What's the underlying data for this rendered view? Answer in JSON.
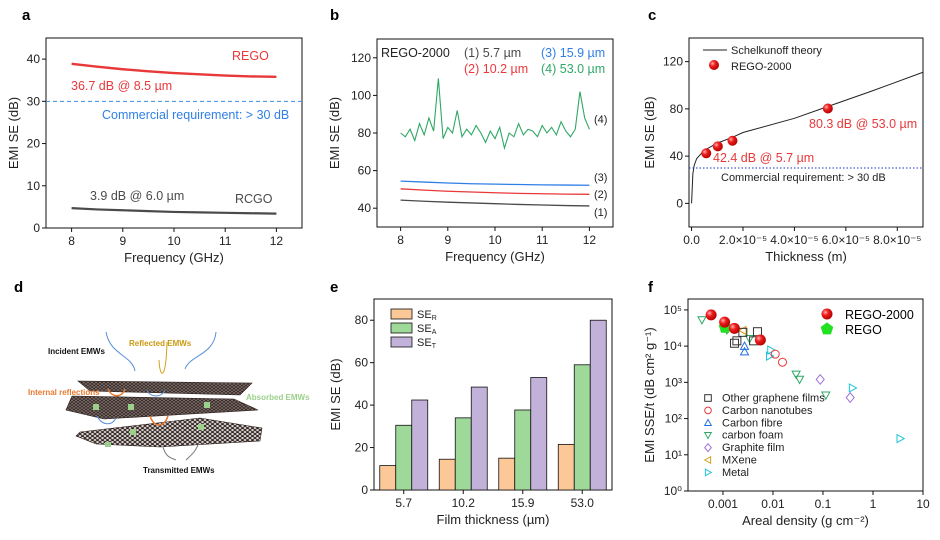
{
  "panel_labels": [
    "a",
    "b",
    "c",
    "d",
    "e",
    "f"
  ],
  "colors": {
    "red": "#e8383a",
    "blue": "#2f7fe6",
    "gray": "#4a4a4a",
    "green": "#2ea866",
    "bar_r": "#fcc898",
    "bar_a": "#9ed99a",
    "bar_t": "#c2b2d9",
    "lime": "#22e022"
  },
  "chart_data": [
    {
      "panel": "a",
      "type": "line",
      "xlabel": "Frequency (GHz)",
      "ylabel": "EMI SE (dB)",
      "xlim": [
        7.5,
        12.5
      ],
      "ylim": [
        0,
        45
      ],
      "xticks": [
        8,
        9,
        10,
        11,
        12
      ],
      "yticks": [
        0,
        10,
        20,
        30,
        40
      ],
      "x": [
        8,
        8.5,
        9,
        9.5,
        10,
        10.5,
        11,
        11.5,
        12
      ],
      "series": [
        {
          "name": "REGO",
          "color": "#e8383a",
          "values": [
            38.9,
            38.2,
            37.6,
            37.1,
            36.7,
            36.4,
            36.1,
            35.9,
            35.8
          ]
        },
        {
          "name": "RCGO",
          "color": "#4a4a4a",
          "values": [
            4.7,
            4.4,
            4.2,
            4.0,
            3.8,
            3.7,
            3.6,
            3.5,
            3.4
          ]
        }
      ],
      "reference_line": {
        "value": 30,
        "style": "dashed",
        "label": "Commercial requirement: > 30 dB"
      },
      "annotations": [
        "36.7 dB @ 8.5 µm",
        "3.9 dB @ 6.0 µm"
      ]
    },
    {
      "panel": "b",
      "type": "line",
      "xlabel": "Frequency (GHz)",
      "ylabel": "EMI SE (dB)",
      "xlim": [
        7.5,
        12.5
      ],
      "ylim": [
        30,
        130
      ],
      "xticks": [
        8,
        9,
        10,
        11,
        12
      ],
      "yticks": [
        40,
        60,
        80,
        100,
        120
      ],
      "title": "REGO-2000",
      "series": [
        {
          "name": "(1) 5.7 µm",
          "tag": "(1)",
          "color": "#4a4a4a",
          "x": [
            8,
            8.5,
            9,
            9.5,
            10,
            10.5,
            11,
            11.5,
            12
          ],
          "values": [
            44.3,
            43.7,
            43.2,
            42.8,
            42.4,
            42.0,
            41.7,
            41.4,
            41.2
          ]
        },
        {
          "name": "(2) 10.2 µm",
          "tag": "(2)",
          "color": "#e8383a",
          "x": [
            8,
            8.5,
            9,
            9.5,
            10,
            10.5,
            11,
            11.5,
            12
          ],
          "values": [
            50.3,
            49.6,
            49.0,
            48.6,
            48.2,
            47.9,
            47.7,
            47.5,
            47.4
          ]
        },
        {
          "name": "(3) 15.9 µm",
          "tag": "(3)",
          "color": "#2f7fe6",
          "x": [
            8,
            8.5,
            9,
            9.5,
            10,
            10.5,
            11,
            11.5,
            12
          ],
          "values": [
            54.4,
            53.9,
            53.4,
            53.0,
            52.8,
            52.6,
            52.4,
            52.3,
            52.2
          ]
        },
        {
          "name": "(4) 53.0 µm",
          "tag": "(4)",
          "color": "#2ea866",
          "x": [
            8,
            8.1,
            8.2,
            8.3,
            8.4,
            8.5,
            8.6,
            8.7,
            8.8,
            8.9,
            9,
            9.1,
            9.2,
            9.3,
            9.4,
            9.5,
            9.6,
            9.7,
            9.8,
            9.9,
            10,
            10.1,
            10.2,
            10.3,
            10.4,
            10.5,
            10.6,
            10.7,
            10.8,
            10.9,
            11,
            11.1,
            11.2,
            11.3,
            11.4,
            11.5,
            11.6,
            11.7,
            11.8,
            11.9,
            12
          ],
          "values": [
            80,
            78,
            82,
            76,
            85,
            79,
            88,
            81,
            109,
            77,
            83,
            80,
            92,
            78,
            82,
            79,
            84,
            80,
            75,
            81,
            77,
            83,
            72,
            80,
            78,
            85,
            79,
            82,
            81,
            78,
            84,
            80,
            83,
            79,
            86,
            81,
            78,
            82,
            102,
            88,
            82
          ]
        }
      ]
    },
    {
      "panel": "c",
      "type": "scatter",
      "xlabel": "Thickness (m)",
      "ylabel": "EMI SE (dB)",
      "xlim": [
        -1e-06,
        9e-05
      ],
      "ylim": [
        -20,
        140
      ],
      "xticks": [
        0,
        2e-05,
        4e-05,
        6e-05,
        8e-05
      ],
      "xtick_labels": [
        "0.0",
        "2.0×10⁻⁵",
        "4.0×10⁻⁵",
        "6.0×10⁻⁵",
        "8.0×10⁻⁵"
      ],
      "yticks": [
        0,
        40,
        80,
        120
      ],
      "legend": "top-left",
      "series": [
        {
          "name": "Schelkunoff theory",
          "kind": "line",
          "color": "#222222",
          "points": [
            [
              0,
              0
            ],
            [
              5e-07,
              25
            ],
            [
              1e-06,
              32
            ],
            [
              2e-06,
              38
            ],
            [
              5e-06,
              45
            ],
            [
              1e-05,
              51
            ],
            [
              1.6e-05,
              56
            ],
            [
              2e-05,
              60
            ],
            [
              4e-05,
              72
            ],
            [
              5.3e-05,
              82
            ],
            [
              7e-05,
              95
            ],
            [
              9e-05,
              111
            ]
          ]
        },
        {
          "name": "REGO-2000",
          "kind": "points",
          "color": "#e8383a",
          "points": [
            [
              5.7e-06,
              42.4
            ],
            [
              1.02e-05,
              48.3
            ],
            [
              1.59e-05,
              53
            ],
            [
              5.3e-05,
              80.3
            ]
          ]
        }
      ],
      "reference_line": {
        "value": 30,
        "style": "dotted",
        "label": "Commercial requirement: > 30 dB"
      },
      "annotations": [
        "80.3 dB @ 53.0 µm",
        "42.4 dB @ 5.7 µm"
      ]
    },
    {
      "panel": "e",
      "type": "bar",
      "xlabel": "Film thickness (µm)",
      "ylabel": "EMI SE (dB)",
      "ylim": [
        0,
        90
      ],
      "yticks": [
        0,
        20,
        40,
        60,
        80
      ],
      "categories": [
        "5.7",
        "10.2",
        "15.9",
        "53.0"
      ],
      "legend": "top-left",
      "series": [
        {
          "label": "SE",
          "subscript": "R",
          "color": "#fcc898",
          "values": [
            11.5,
            14.5,
            15,
            21.5
          ]
        },
        {
          "label": "SE",
          "subscript": "A",
          "color": "#9ed99a",
          "values": [
            30.5,
            34,
            37.7,
            59
          ]
        },
        {
          "label": "SE",
          "subscript": "T",
          "color": "#c2b2d9",
          "values": [
            42.4,
            48.5,
            53,
            80
          ]
        }
      ]
    },
    {
      "panel": "f",
      "type": "scatter",
      "xlabel": "Areal density (g cm⁻²)",
      "ylabel": "EMI SSE/t (dB cm² g⁻¹)",
      "xscale": "log",
      "yscale": "log",
      "xlim": [
        0.0002,
        10
      ],
      "ylim": [
        1,
        200000
      ],
      "xticks": [
        0.001,
        0.01,
        0.1,
        1,
        10
      ],
      "xtick_labels": [
        "0.001",
        "0.01",
        "0.1",
        "1",
        "10"
      ],
      "yticks": [
        1,
        10,
        100,
        1000,
        10000,
        100000
      ],
      "ytick_labels": [
        "10⁰",
        "10¹",
        "10²",
        "10³",
        "10⁴",
        "10⁵"
      ],
      "series": [
        {
          "name": "REGO-2000",
          "marker": "ball",
          "color": "#ee1c1c",
          "points": [
            [
              0.00058,
              73000
            ],
            [
              0.00108,
              46000
            ],
            [
              0.00169,
              31000
            ],
            [
              0.0056,
              14800
            ]
          ]
        },
        {
          "name": "REGO",
          "marker": "pentagon",
          "color": "#22e022",
          "points": [
            [
              0.0011,
              33000
            ]
          ]
        },
        {
          "name": "Other graphene films",
          "marker": "square",
          "color": "#333333",
          "points": [
            [
              0.0017,
              12000
            ],
            [
              0.0019,
              14000
            ],
            [
              0.0025,
              24000
            ],
            [
              0.0049,
              25000
            ],
            [
              0.0041,
              14000
            ]
          ]
        },
        {
          "name": "Carbon nanotubes",
          "marker": "circle",
          "color": "#e8383a",
          "points": [
            [
              0.0111,
              6000
            ],
            [
              0.0155,
              3600
            ]
          ]
        },
        {
          "name": "Carbon fibre",
          "marker": "tri-up",
          "color": "#1f6fe0",
          "points": [
            [
              0.0027,
              10000
            ],
            [
              0.0027,
              7000
            ]
          ]
        },
        {
          "name": "carbon foam",
          "marker": "tri-down",
          "color": "#2ea866",
          "points": [
            [
              0.00038,
              53000
            ],
            [
              0.0012,
              28000
            ],
            [
              0.0034,
              16000
            ],
            [
              0.029,
              1660
            ],
            [
              0.034,
              1200
            ],
            [
              0.114,
              440
            ]
          ]
        },
        {
          "name": "Graphite film",
          "marker": "diamond",
          "color": "#a070d8",
          "points": [
            [
              0.088,
              1200
            ],
            [
              0.35,
              380
            ]
          ]
        },
        {
          "name": "MXene",
          "marker": "tri-left",
          "color": "#d4a017",
          "points": [
            [
              0.0025,
              27000
            ]
          ]
        },
        {
          "name": "Metal",
          "marker": "tri-right",
          "color": "#1fc4d8",
          "points": [
            [
              0.0091,
              7800
            ],
            [
              0.0086,
              5300
            ],
            [
              0.39,
              700
            ],
            [
              3.5,
              28
            ]
          ]
        }
      ]
    }
  ],
  "panel_d": {
    "incident": "Incident EMWs",
    "reflected": "Reflected EMWs",
    "internal": "Internal reflections",
    "absorbed": "Absorbed EMWs",
    "transmitted": "Transmitted EMWs"
  }
}
